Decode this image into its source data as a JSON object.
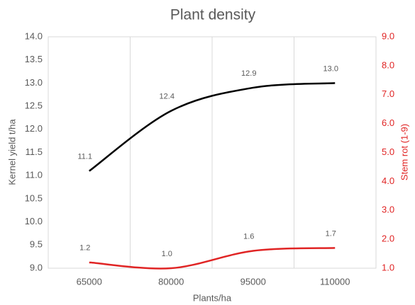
{
  "chart_data": {
    "type": "line",
    "title": "Plant density",
    "x_label": "Plants/ha",
    "y_label": "Kernel yield t/ha",
    "y2_label": "Stem rot (1-9)",
    "categories": [
      "65000",
      "80000",
      "95000",
      "110000"
    ],
    "series": [
      {
        "name": "Kernel yield",
        "color": "#000000",
        "values": [
          11.1,
          12.4,
          12.9,
          13.0
        ],
        "value_labels": [
          "11.1",
          "12.4",
          "12.9",
          "13.0"
        ]
      },
      {
        "name": "Stem rot",
        "color": "#e02424",
        "axis": "y2",
        "values": [
          1.2,
          1.0,
          1.6,
          1.7
        ],
        "value_labels": [
          "1.2",
          "1.0",
          "1.6",
          "1.7"
        ]
      }
    ],
    "ylim": [
      9,
      14
    ],
    "yticks": [
      {
        "value": 9,
        "label": "9.0"
      },
      9.5,
      {
        "value": 10,
        "label": "10.0"
      },
      10.5,
      {
        "value": 11,
        "label": "11.0"
      },
      11.5,
      {
        "value": 12,
        "label": "12.0"
      },
      12.5,
      {
        "value": 13,
        "label": "13.0"
      },
      13.5,
      {
        "value": 14,
        "label": "14.0"
      }
    ],
    "y2lim": [
      1,
      9
    ],
    "y2ticks": [
      {
        "value": 1,
        "label": "1.0"
      },
      {
        "value": 2,
        "label": "2.0"
      },
      {
        "value": 3,
        "label": "3.0"
      },
      {
        "value": 4,
        "label": "4.0"
      },
      {
        "value": 5,
        "label": "5.0"
      },
      {
        "value": 6,
        "label": "6.0"
      },
      {
        "value": 7,
        "label": "7.0"
      },
      {
        "value": 8,
        "label": "8.0"
      },
      {
        "value": 9,
        "label": "9.0"
      }
    ],
    "y2color": "#e02424",
    "grid": "x"
  }
}
